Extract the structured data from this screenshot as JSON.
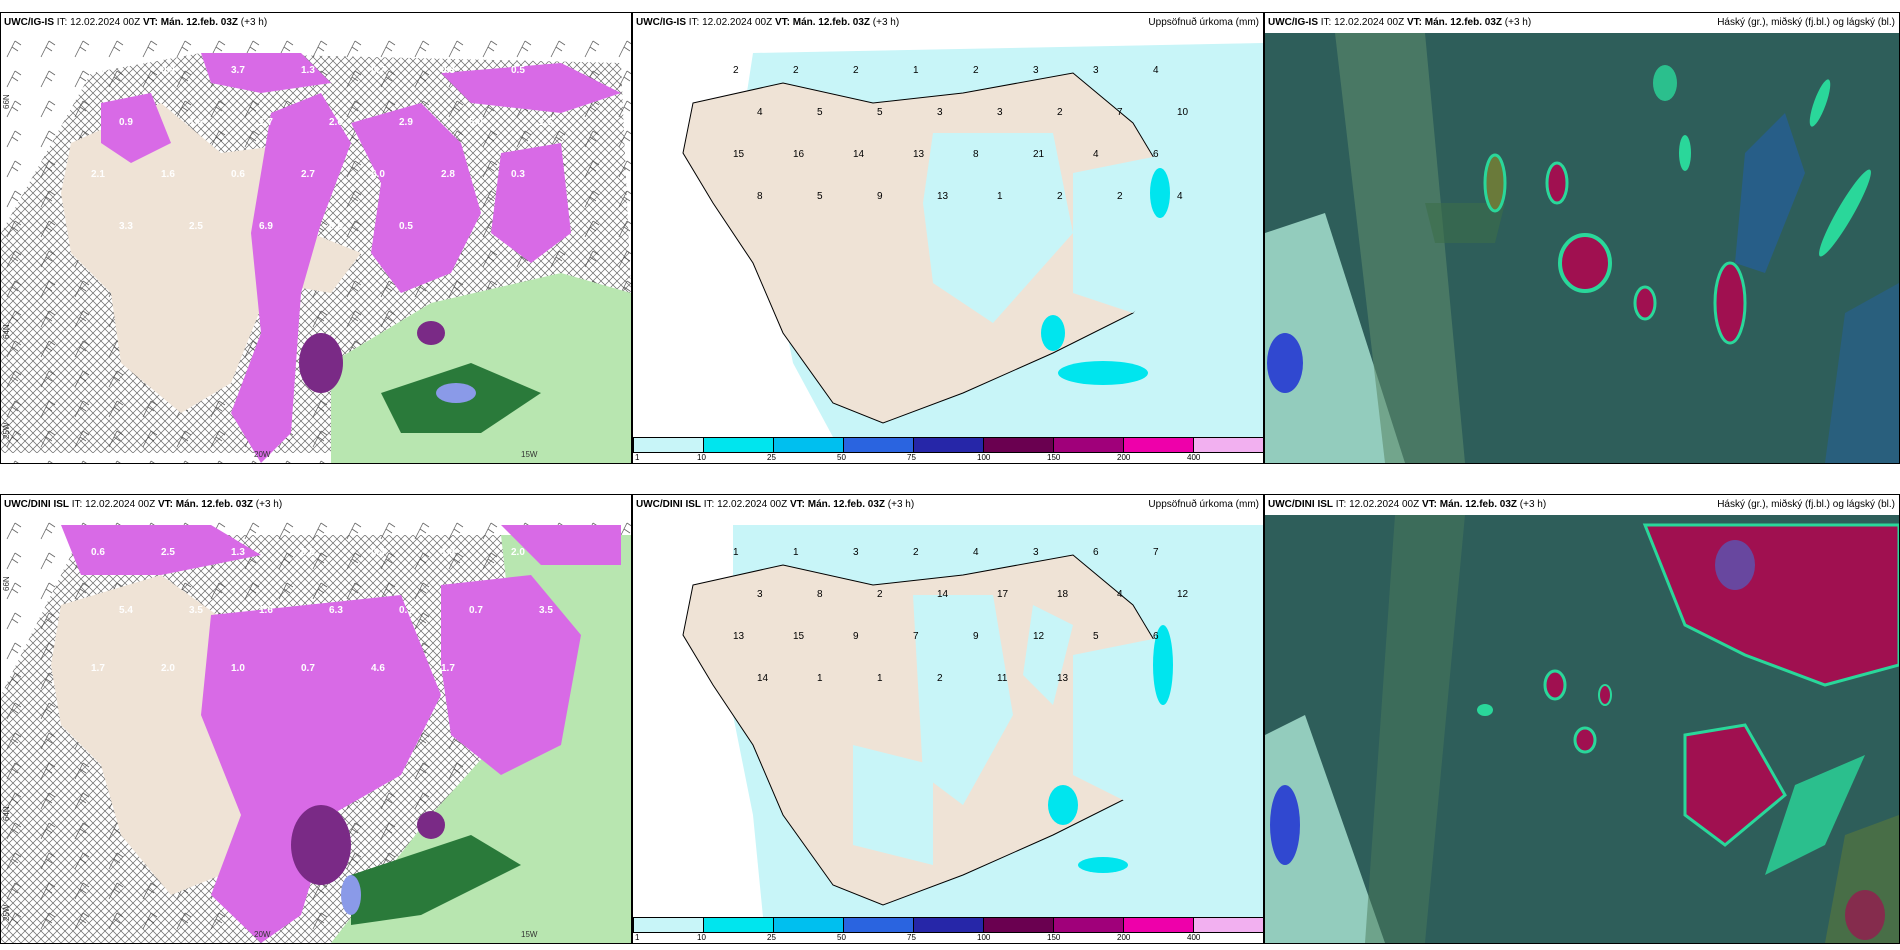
{
  "panels": {
    "r1_left": {
      "model": "UWC/IG-IS",
      "it_label": "IT:",
      "it": "12.02.2024 00Z",
      "vt_label": "VT:",
      "vt": "Mán. 12.feb. 03Z",
      "lead": "(+3 h)",
      "title": ""
    },
    "r1_mid": {
      "model": "UWC/IG-IS",
      "it_label": "IT:",
      "it": "12.02.2024 00Z",
      "vt_label": "VT:",
      "vt": "Mán. 12.feb. 03Z",
      "lead": "(+3 h)",
      "title": "Uppsöfnuð úrkoma (mm)"
    },
    "r1_right": {
      "model": "UWC/IG-IS",
      "it_label": "IT:",
      "it": "12.02.2024 00Z",
      "vt_label": "VT:",
      "vt": "Mán. 12.feb. 03Z",
      "lead": "(+3 h)",
      "title": "Háský (gr.), miðský (fj.bl.) og lágský (bl.)"
    },
    "r2_left": {
      "model": "UWC/DINI ISL",
      "it_label": "IT:",
      "it": "12.02.2024 00Z",
      "vt_label": "VT:",
      "vt": "Mán. 12.feb. 03Z",
      "lead": "(+3 h)",
      "title": ""
    },
    "r2_mid": {
      "model": "UWC/DINI ISL",
      "it_label": "IT:",
      "it": "12.02.2024 00Z",
      "vt_label": "VT:",
      "vt": "Mán. 12.feb. 03Z",
      "lead": "(+3 h)",
      "title": "Uppsöfnuð úrkoma (mm)"
    },
    "r2_right": {
      "model": "UWC/DINI ISL",
      "it_label": "IT:",
      "it": "12.02.2024 00Z",
      "vt_label": "VT:",
      "vt": "Mán. 12.feb. 03Z",
      "lead": "(+3 h)",
      "title": "Háský (gr.), miðský (fj.bl.) og lágský (bl.)"
    }
  },
  "axis_labels": {
    "lon1": "20W",
    "lon2": "15W",
    "lat1": "66N",
    "lat2": "64N",
    "lat3": "25W"
  },
  "colorbar": {
    "ticks": [
      "1",
      "10",
      "25",
      "50",
      "75",
      "100",
      "150",
      "200",
      "400"
    ],
    "colors": [
      "#c8f5f8",
      "#00e5ee",
      "#00bfef",
      "#2a64e0",
      "#2626a8",
      "#6a0050",
      "#a0007a",
      "#ee00aa",
      "#f2b0f0"
    ]
  },
  "precip_labels_r1": [
    "2",
    "2",
    "2",
    "1",
    "2",
    "3",
    "3",
    "4",
    "4",
    "5",
    "5",
    "3",
    "3",
    "2",
    "7",
    "10",
    "15",
    "16",
    "14",
    "13",
    "8",
    "21",
    "4",
    "6",
    "8",
    "5",
    "9",
    "13",
    "1",
    "2",
    "2",
    "4"
  ],
  "precip_labels_r2": [
    "1",
    "1",
    "3",
    "2",
    "4",
    "3",
    "6",
    "7",
    "3",
    "8",
    "2",
    "14",
    "17",
    "18",
    "4",
    "12",
    "13",
    "15",
    "9",
    "7",
    "9",
    "12",
    "5",
    "6",
    "14",
    "1",
    "1",
    "2",
    "11",
    "13"
  ],
  "left_labels_r1": [
    "0.3",
    "0.9",
    "3.7",
    "1.3",
    "0.7",
    "0.3",
    "0.5",
    "0.9",
    "1.6",
    "1.7",
    "2.6",
    "2.9",
    "5.0",
    "1.5",
    "2.1",
    "1.6",
    "0.6",
    "2.7",
    "6.0",
    "2.8",
    "0.3",
    "3.3",
    "2.5",
    "6.9",
    "0.6",
    "0.5"
  ],
  "left_labels_r2": [
    "0.6",
    "2.5",
    "1.3",
    "0.6",
    "0.4",
    "1.8",
    "2.0",
    "5.4",
    "3.5",
    "1.6",
    "6.3",
    "0.5",
    "0.7",
    "3.5",
    "1.7",
    "2.0",
    "1.0",
    "0.7",
    "4.6",
    "1.7"
  ],
  "colors": {
    "land": "#efe3d6",
    "sea_green": "#b8e6b0",
    "precip_purple": "#d86ae6",
    "precip_dark": "#7a2a86",
    "cloud_base": "#2e5e5a",
    "cloud_high": "#2ad79a",
    "cloud_mid": "#a01050",
    "cloud_low": "#2060c0"
  }
}
